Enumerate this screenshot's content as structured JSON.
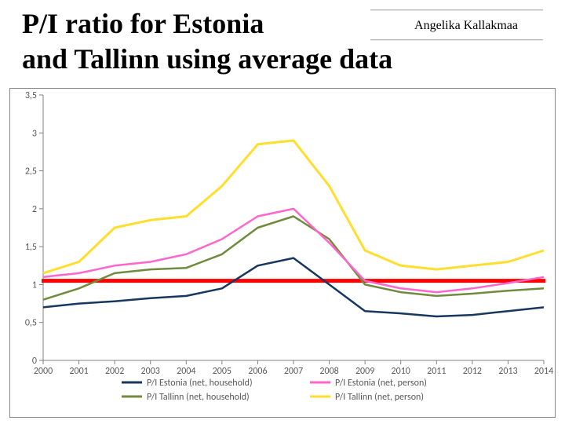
{
  "author": "Angelika Kallakmaa",
  "title_line1": "P/I ratio for Estonia",
  "title_line2": " and Tallinn using average data",
  "chart": {
    "type": "line",
    "background_color": "#ffffff",
    "plot_border_color": "#888888",
    "axis_color": "#808080",
    "tick_color": "#808080",
    "label_color": "#595959",
    "label_fontsize": 12,
    "x": {
      "categories": [
        "2000",
        "2001",
        "2002",
        "2003",
        "2004",
        "2005",
        "2006",
        "2007",
        "2008",
        "2009",
        "2010",
        "2011",
        "2012",
        "2013",
        "2014"
      ]
    },
    "y": {
      "min": 0,
      "max": 3.5,
      "tick_step": 0.5,
      "tick_labels": [
        "0",
        "0,5",
        "1",
        "1,5",
        "2",
        "2,5",
        "3",
        "3,5"
      ]
    },
    "series": [
      {
        "name": "P/I Estonia (net, household)",
        "color": "#17375e",
        "width": 2.5,
        "values": [
          0.7,
          0.75,
          0.78,
          0.82,
          0.85,
          0.95,
          1.25,
          1.35,
          1.0,
          0.65,
          0.62,
          0.58,
          0.6,
          0.65,
          0.7
        ]
      },
      {
        "name": "P/I Estonia (net, person)",
        "color": "#ff66cc",
        "width": 2.5,
        "values": [
          1.1,
          1.15,
          1.25,
          1.3,
          1.4,
          1.6,
          1.9,
          2.0,
          1.55,
          1.05,
          0.95,
          0.9,
          0.95,
          1.02,
          1.1
        ]
      },
      {
        "name": "P/I Tallinn (net, household)",
        "color": "#6f8b3d",
        "width": 2.5,
        "values": [
          0.8,
          0.95,
          1.15,
          1.2,
          1.22,
          1.4,
          1.75,
          1.9,
          1.6,
          1.0,
          0.9,
          0.85,
          0.88,
          0.92,
          0.95
        ]
      },
      {
        "name": "P/I Tallinn (net, person)",
        "color": "#ffde2e",
        "width": 3,
        "values": [
          1.15,
          1.3,
          1.75,
          1.85,
          1.9,
          2.3,
          2.85,
          2.9,
          2.3,
          1.45,
          1.25,
          1.2,
          1.25,
          1.3,
          1.45
        ]
      }
    ],
    "reference_line": {
      "y": 1.05,
      "color": "#ff0000",
      "width": 5
    },
    "legend": {
      "position": "bottom",
      "swatch_width": 26,
      "swatch_height": 3
    }
  }
}
